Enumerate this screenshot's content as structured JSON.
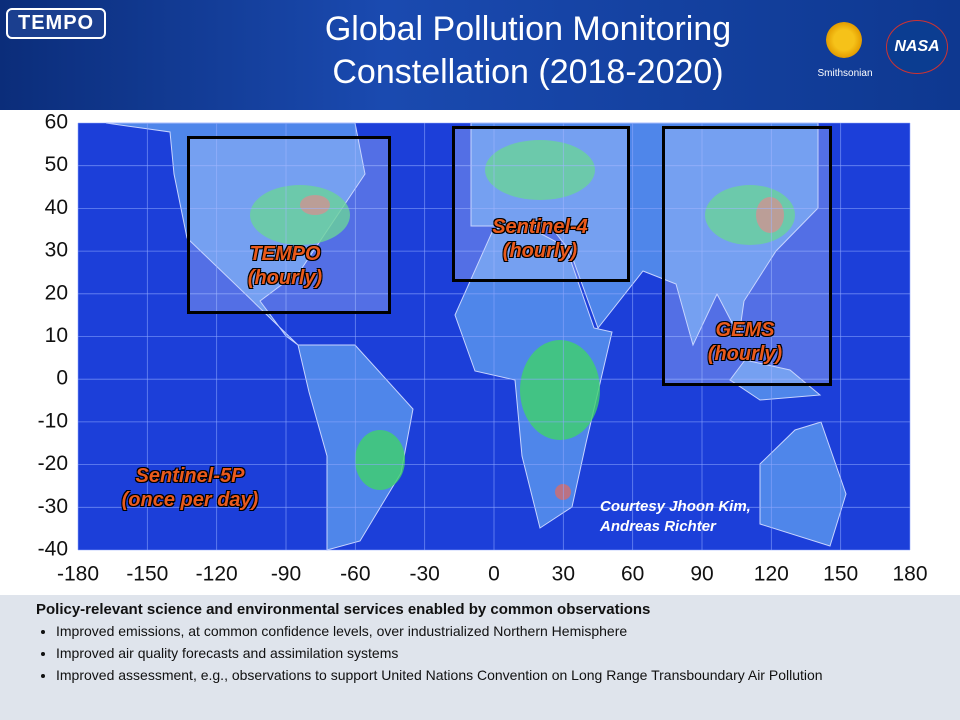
{
  "header": {
    "title": "Global Pollution Monitoring Constellation (2018-2020)",
    "badge": "TEMPO",
    "logos": [
      "Smithsonian",
      "NASA"
    ]
  },
  "map": {
    "xlim": [
      -180,
      180
    ],
    "ylim": [
      -40,
      60
    ],
    "xticks": [
      -180,
      -150,
      -120,
      -90,
      -60,
      -30,
      0,
      30,
      60,
      90,
      120,
      150,
      180
    ],
    "yticks": [
      -40,
      -30,
      -20,
      -10,
      0,
      10,
      20,
      30,
      40,
      50,
      60
    ],
    "grid": true,
    "regions": [
      {
        "name": "TEMPO",
        "cadence": "(hourly)"
      },
      {
        "name": "Sentinel-4",
        "cadence": "(hourly)"
      },
      {
        "name": "GEMS",
        "cadence": "(hourly)"
      },
      {
        "name": "Sentinel-5P",
        "cadence": "(once per day)"
      }
    ],
    "credit": [
      "Courtesy Jhoon Kim,",
      "Andreas Richter"
    ]
  },
  "footer": {
    "heading": "Policy-relevant science and environmental services enabled by common observations",
    "bullets": [
      "Improved emissions, at common confidence levels, over industrialized Northern Hemisphere",
      "Improved air quality forecasts and assimilation systems",
      "Improved assessment, e.g., observations to support United Nations Convention on Long Range Transboundary Air Pollution"
    ]
  }
}
